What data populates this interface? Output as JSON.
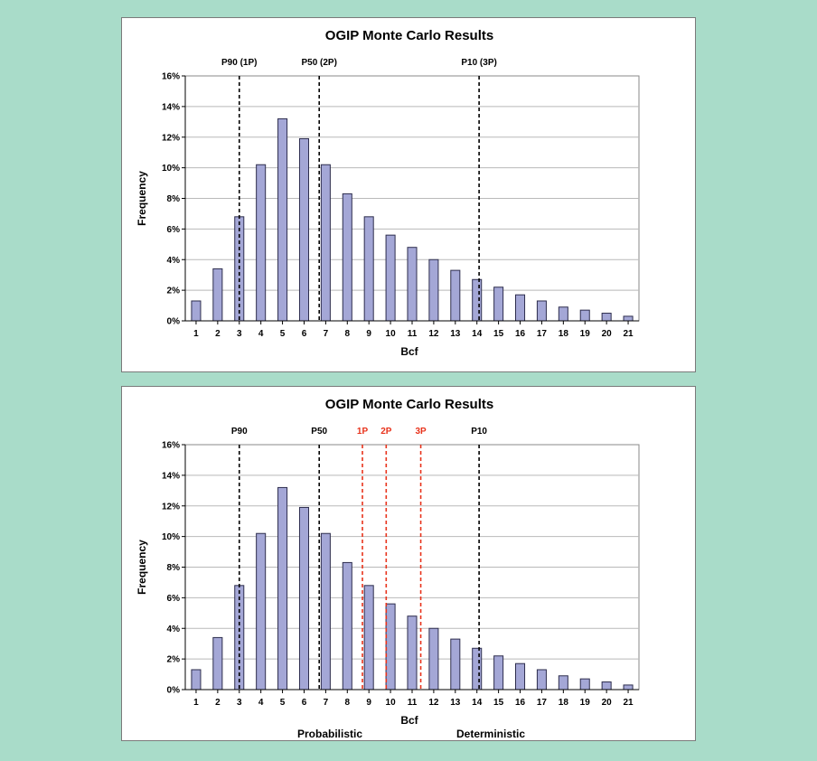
{
  "chart_data": [
    {
      "type": "bar",
      "title": "OGIP Monte Carlo Results",
      "xlabel": "Bcf",
      "ylabel": "Frequency",
      "categories": [
        "1",
        "2",
        "3",
        "4",
        "5",
        "6",
        "7",
        "8",
        "9",
        "10",
        "11",
        "12",
        "13",
        "14",
        "15",
        "16",
        "17",
        "18",
        "19",
        "20",
        "21"
      ],
      "values": [
        1.3,
        3.4,
        6.8,
        10.2,
        13.2,
        11.9,
        10.2,
        8.3,
        6.8,
        5.6,
        4.8,
        4.0,
        3.3,
        2.7,
        2.2,
        1.7,
        1.3,
        0.9,
        0.7,
        0.5,
        0.3
      ],
      "ylim": [
        0,
        16
      ],
      "yticks": [
        "0%",
        "2%",
        "4%",
        "6%",
        "8%",
        "10%",
        "12%",
        "14%",
        "16%"
      ],
      "grid": true,
      "reference_lines": [
        {
          "label": "P90 (1P)",
          "x": 3.0,
          "color": "#000000"
        },
        {
          "label": "P50 (2P)",
          "x": 6.7,
          "color": "#000000"
        },
        {
          "label": "P10 (3P)",
          "x": 14.1,
          "color": "#000000"
        }
      ],
      "bottom_labels": []
    },
    {
      "type": "bar",
      "title": "OGIP Monte Carlo Results",
      "xlabel": "Bcf",
      "ylabel": "Frequency",
      "categories": [
        "1",
        "2",
        "3",
        "4",
        "5",
        "6",
        "7",
        "8",
        "9",
        "10",
        "11",
        "12",
        "13",
        "14",
        "15",
        "16",
        "17",
        "18",
        "19",
        "20",
        "21"
      ],
      "values": [
        1.3,
        3.4,
        6.8,
        10.2,
        13.2,
        11.9,
        10.2,
        8.3,
        6.8,
        5.6,
        4.8,
        4.0,
        3.3,
        2.7,
        2.2,
        1.7,
        1.3,
        0.9,
        0.7,
        0.5,
        0.3
      ],
      "ylim": [
        0,
        16
      ],
      "yticks": [
        "0%",
        "2%",
        "4%",
        "6%",
        "8%",
        "10%",
        "12%",
        "14%",
        "16%"
      ],
      "grid": true,
      "reference_lines": [
        {
          "label": "P90",
          "x": 3.0,
          "color": "#000000"
        },
        {
          "label": "P50",
          "x": 6.7,
          "color": "#000000"
        },
        {
          "label": "1P",
          "x": 8.7,
          "color": "#e8331c"
        },
        {
          "label": "2P",
          "x": 9.8,
          "color": "#e8331c"
        },
        {
          "label": "3P",
          "x": 11.4,
          "color": "#e8331c"
        },
        {
          "label": "P10",
          "x": 14.1,
          "color": "#000000"
        }
      ],
      "bottom_labels": [
        {
          "text": "Probabilistic",
          "color": "#000000"
        },
        {
          "text": "Deterministic",
          "color": "#e8331c"
        }
      ]
    }
  ]
}
